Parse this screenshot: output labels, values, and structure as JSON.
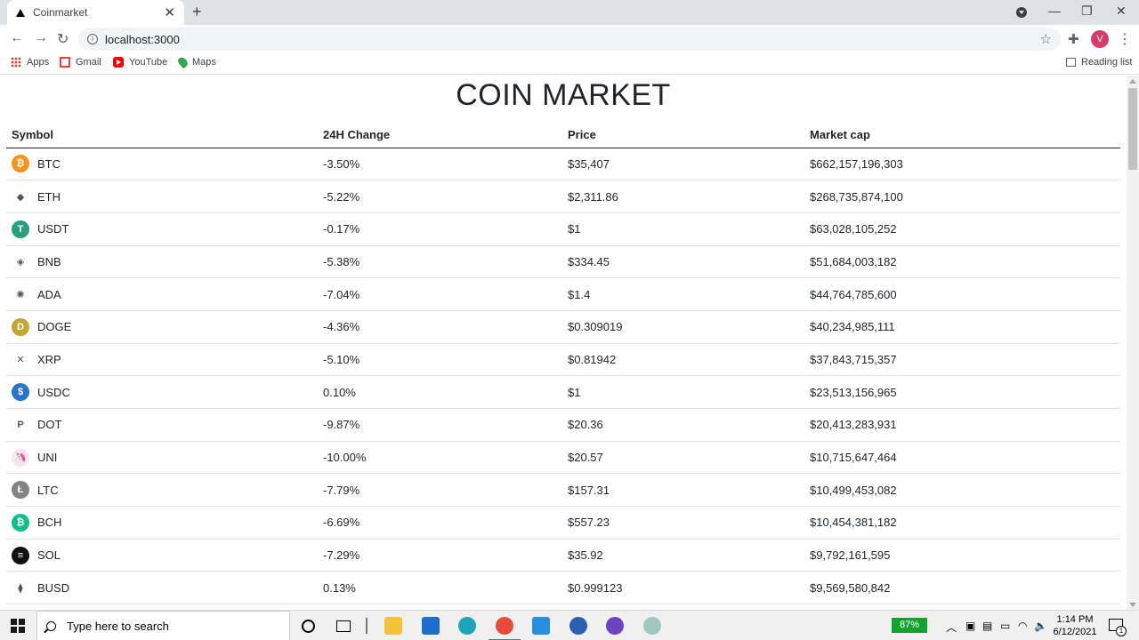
{
  "browser": {
    "tab_title": "Coinmarket",
    "tab_close": "✕",
    "new_tab": "+",
    "url": "localhost:3000",
    "avatar_letter": "V",
    "window_controls": {
      "minimize": "—",
      "maximize": "❐",
      "close": "✕"
    },
    "bookmarks": [
      {
        "label": "Apps",
        "icon": "apps-icon"
      },
      {
        "label": "Gmail",
        "icon": "gmail-icon"
      },
      {
        "label": "YouTube",
        "icon": "youtube-icon"
      },
      {
        "label": "Maps",
        "icon": "maps-icon"
      }
    ],
    "reading_list": "Reading list"
  },
  "page": {
    "title": "COIN MARKET",
    "columns": [
      "Symbol",
      "24H Change",
      "Price",
      "Market cap"
    ],
    "rows": [
      {
        "symbol": "BTC",
        "change": "-3.50%",
        "price": "$35,407",
        "market_cap": "$662,157,196,303",
        "icon_color": "#f7931a",
        "icon_glyph": "₿",
        "trend": "neg"
      },
      {
        "symbol": "ETH",
        "change": "-5.22%",
        "price": "$2,311.86",
        "market_cap": "$268,735,874,100",
        "icon_color": "#ffffff",
        "icon_glyph": "◆",
        "trend": "neg"
      },
      {
        "symbol": "USDT",
        "change": "-0.17%",
        "price": "$1",
        "market_cap": "$63,028,105,252",
        "icon_color": "#26a17b",
        "icon_glyph": "T",
        "trend": "neg"
      },
      {
        "symbol": "BNB",
        "change": "-5.38%",
        "price": "$334.45",
        "market_cap": "$51,684,003,182",
        "icon_color": "#ffffff",
        "icon_glyph": "◈",
        "trend": "neg"
      },
      {
        "symbol": "ADA",
        "change": "-7.04%",
        "price": "$1.4",
        "market_cap": "$44,764,785,600",
        "icon_color": "#ffffff",
        "icon_glyph": "✺",
        "trend": "neg"
      },
      {
        "symbol": "DOGE",
        "change": "-4.36%",
        "price": "$0.309019",
        "market_cap": "$40,234,985,111",
        "icon_color": "#c2a633",
        "icon_glyph": "D",
        "trend": "neg"
      },
      {
        "symbol": "XRP",
        "change": "-5.10%",
        "price": "$0.81942",
        "market_cap": "$37,843,715,357",
        "icon_color": "#ffffff",
        "icon_glyph": "✕",
        "trend": "neg"
      },
      {
        "symbol": "USDC",
        "change": "0.10%",
        "price": "$1",
        "market_cap": "$23,513,156,965",
        "icon_color": "#2775ca",
        "icon_glyph": "$",
        "trend": "pos"
      },
      {
        "symbol": "DOT",
        "change": "-9.87%",
        "price": "$20.36",
        "market_cap": "$20,413,283,931",
        "icon_color": "#ffffff",
        "icon_glyph": "P",
        "trend": "neg"
      },
      {
        "symbol": "UNI",
        "change": "-10.00%",
        "price": "$20.57",
        "market_cap": "$10,715,647,464",
        "icon_color": "#fde4f0",
        "icon_glyph": "🦄",
        "trend": "neg"
      },
      {
        "symbol": "LTC",
        "change": "-7.79%",
        "price": "$157.31",
        "market_cap": "$10,499,453,082",
        "icon_color": "#838383",
        "icon_glyph": "Ł",
        "trend": "neg"
      },
      {
        "symbol": "BCH",
        "change": "-6.69%",
        "price": "$557.23",
        "market_cap": "$10,454,381,182",
        "icon_color": "#0ac18e",
        "icon_glyph": "₿",
        "trend": "neg"
      },
      {
        "symbol": "SOL",
        "change": "-7.29%",
        "price": "$35.92",
        "market_cap": "$9,792,161,595",
        "icon_color": "#111111",
        "icon_glyph": "≡",
        "trend": "neg"
      },
      {
        "symbol": "BUSD",
        "change": "0.13%",
        "price": "$0.999123",
        "market_cap": "$9,569,580,842",
        "icon_color": "#ffffff",
        "icon_glyph": "⧫",
        "trend": "pos"
      }
    ]
  },
  "taskbar": {
    "search_placeholder": "Type here to search",
    "battery": "87%",
    "time": "1:14 PM",
    "date": "6/12/2021",
    "notification_count": "1"
  },
  "colors": {
    "negative": "#dc3545",
    "positive": "#198754",
    "text": "#212529"
  }
}
